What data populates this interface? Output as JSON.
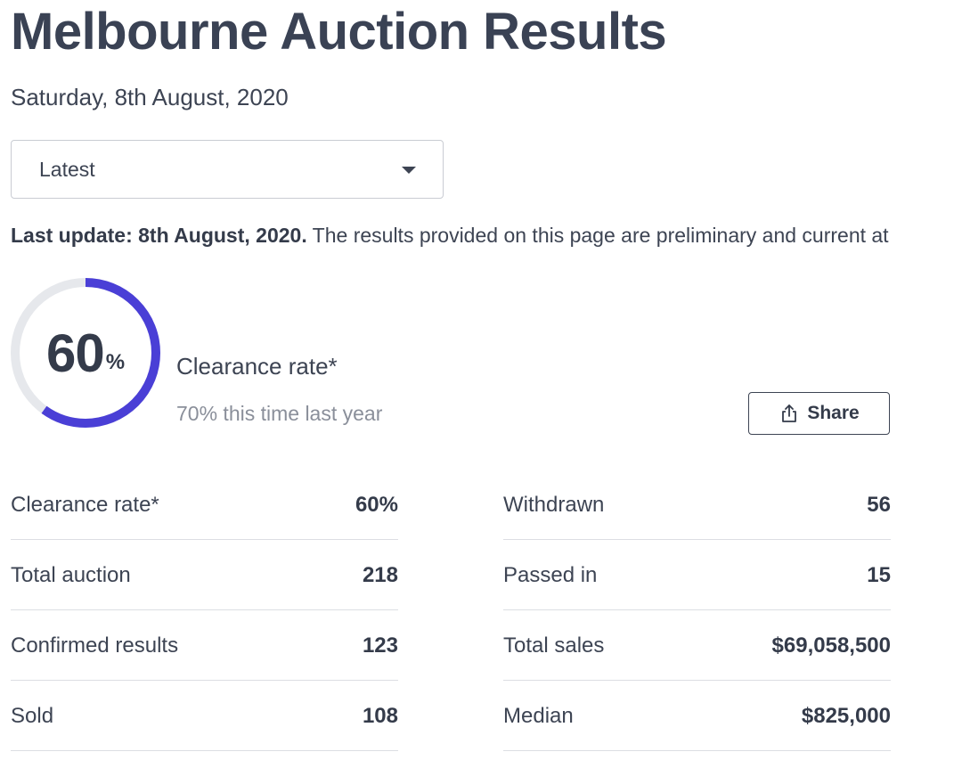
{
  "header": {
    "title": "Melbourne Auction Results",
    "date": "Saturday, 8th August, 2020"
  },
  "selector": {
    "value": "Latest",
    "icon": "chevron-down-icon"
  },
  "update": {
    "bold": "Last update: 8th August, 2020.",
    "text": " The results provided on this page are preliminary and current at"
  },
  "summary": {
    "clearance_rate_percent": 60,
    "value": "60",
    "unit": "%",
    "label": "Clearance rate*",
    "comparison": "70% this time last year",
    "ring_color": "#4a3fd6",
    "track_color": "#e6e8ec"
  },
  "share": {
    "label": "Share",
    "icon": "share-icon"
  },
  "stats": {
    "left": [
      {
        "label": "Clearance rate*",
        "value": "60%"
      },
      {
        "label": "Total auction",
        "value": "218"
      },
      {
        "label": "Confirmed results",
        "value": "123"
      },
      {
        "label": "Sold",
        "value": "108"
      }
    ],
    "right": [
      {
        "label": "Withdrawn",
        "value": "56"
      },
      {
        "label": "Passed in",
        "value": "15"
      },
      {
        "label": "Total sales",
        "value": "$69,058,500"
      },
      {
        "label": "Median",
        "value": "$825,000"
      }
    ]
  }
}
